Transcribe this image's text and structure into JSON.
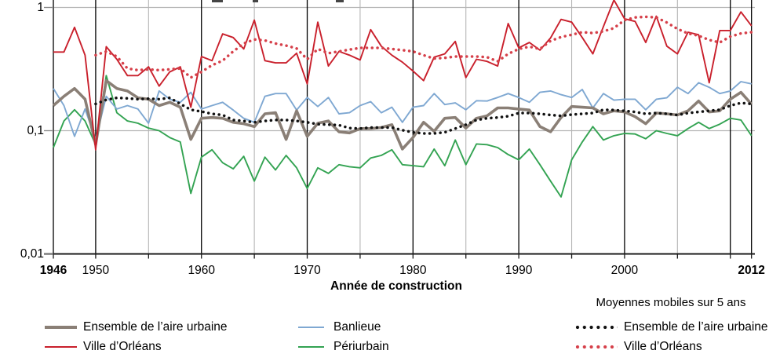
{
  "figure": {
    "clipped_title_visible": true
  },
  "legend": {
    "col1": [
      {
        "label": "Ensemble de l’aire urbaine",
        "series": 0
      },
      {
        "label": "Ville d’Orléans",
        "series": 1
      }
    ],
    "col2": [
      {
        "label": "Banlieue",
        "series": 2
      },
      {
        "label": "Périurbain",
        "series": 3
      }
    ],
    "col3_header": "Moyennes mobiles sur 5 ans",
    "col3": [
      {
        "label": "Ensemble de l’aire urbaine",
        "series": 4
      },
      {
        "label": "Ville d’Orléans",
        "series": 5
      }
    ]
  },
  "chart_data": {
    "type": "line",
    "xlabel": "Année de construction",
    "ylabel": "",
    "y_scale": "log",
    "ylim": [
      0.01,
      1.15
    ],
    "xlim": [
      1946,
      2012
    ],
    "x_start": 1946,
    "grid": true,
    "y_ticks": [
      {
        "value": 1,
        "label": "1"
      },
      {
        "value": 0.1,
        "label": "0,1"
      },
      {
        "value": 0.01,
        "label": "0,01"
      }
    ],
    "y_gridline_values": [
      1,
      0.1
    ],
    "x_tick_labels": [
      {
        "year": 1946,
        "label": "1946",
        "bold": true
      },
      {
        "year": 1950,
        "label": "1950",
        "bold": false
      },
      {
        "year": 1960,
        "label": "1960",
        "bold": false
      },
      {
        "year": 1970,
        "label": "1970",
        "bold": false
      },
      {
        "year": 1980,
        "label": "1980",
        "bold": false
      },
      {
        "year": 1990,
        "label": "1990",
        "bold": false
      },
      {
        "year": 2000,
        "label": "2000",
        "bold": false
      },
      {
        "year": 2012,
        "label": "2012",
        "bold": true
      }
    ],
    "grid_years_dark": [
      1946,
      1950,
      1960,
      1970,
      1980,
      1990,
      2000,
      2010,
      2012
    ],
    "grid_years_light": [
      1955,
      1965,
      1975,
      1985,
      1995,
      2005
    ],
    "axis_tick_years": [
      1946,
      1950,
      1955,
      1960,
      1965,
      1970,
      1975,
      1980,
      1985,
      1990,
      1995,
      2000,
      2005,
      2010,
      2012
    ],
    "colors": {
      "grid_dark": "#000000",
      "grid_light": "#b5b5b5",
      "axis": "#1a1a1a"
    },
    "series": [
      {
        "name": "Ensemble de l’aire urbaine",
        "style": "solid",
        "color": "#8a7f76",
        "width": 3.6,
        "start_year": 1946,
        "values": [
          0.16,
          0.19,
          0.22,
          0.18,
          0.077,
          0.255,
          0.22,
          0.21,
          0.185,
          0.18,
          0.16,
          0.17,
          0.155,
          0.085,
          0.126,
          0.128,
          0.126,
          0.117,
          0.114,
          0.108,
          0.137,
          0.14,
          0.085,
          0.145,
          0.09,
          0.115,
          0.12,
          0.098,
          0.096,
          0.104,
          0.104,
          0.106,
          0.112,
          0.071,
          0.088,
          0.117,
          0.099,
          0.126,
          0.128,
          0.105,
          0.126,
          0.132,
          0.153,
          0.153,
          0.15,
          0.147,
          0.108,
          0.098,
          0.128,
          0.157,
          0.155,
          0.153,
          0.137,
          0.145,
          0.142,
          0.13,
          0.114,
          0.139,
          0.137,
          0.134,
          0.145,
          0.174,
          0.142,
          0.145,
          0.18,
          0.205,
          0.164
        ]
      },
      {
        "name": "Ville d’Orléans",
        "style": "solid",
        "color": "#c9202c",
        "width": 1.9,
        "start_year": 1946,
        "values": [
          0.435,
          0.435,
          0.69,
          0.41,
          0.07,
          0.48,
          0.38,
          0.28,
          0.28,
          0.33,
          0.23,
          0.3,
          0.33,
          0.155,
          0.4,
          0.37,
          0.61,
          0.57,
          0.46,
          0.79,
          0.37,
          0.355,
          0.355,
          0.425,
          0.24,
          0.76,
          0.335,
          0.44,
          0.41,
          0.375,
          0.66,
          0.485,
          0.41,
          0.36,
          0.305,
          0.255,
          0.395,
          0.42,
          0.53,
          0.27,
          0.38,
          0.365,
          0.335,
          0.74,
          0.47,
          0.52,
          0.45,
          0.565,
          0.8,
          0.76,
          0.57,
          0.42,
          0.7,
          1.15,
          0.81,
          0.77,
          0.52,
          0.85,
          0.485,
          0.42,
          0.63,
          0.6,
          0.245,
          0.65,
          0.65,
          0.92,
          0.71
        ]
      },
      {
        "name": "Banlieue",
        "style": "solid",
        "color": "#7fa8d2",
        "width": 1.9,
        "start_year": 1946,
        "values": [
          0.22,
          0.16,
          0.09,
          0.15,
          0.085,
          0.19,
          0.15,
          0.16,
          0.15,
          0.115,
          0.21,
          0.18,
          0.17,
          0.205,
          0.15,
          0.16,
          0.17,
          0.147,
          0.126,
          0.117,
          0.19,
          0.2,
          0.2,
          0.147,
          0.186,
          0.157,
          0.186,
          0.137,
          0.14,
          0.16,
          0.172,
          0.14,
          0.155,
          0.117,
          0.155,
          0.16,
          0.2,
          0.163,
          0.168,
          0.148,
          0.175,
          0.174,
          0.186,
          0.2,
          0.186,
          0.17,
          0.205,
          0.21,
          0.196,
          0.186,
          0.216,
          0.153,
          0.2,
          0.177,
          0.18,
          0.18,
          0.148,
          0.18,
          0.185,
          0.225,
          0.2,
          0.245,
          0.225,
          0.2,
          0.21,
          0.25,
          0.24
        ]
      },
      {
        "name": "Périurbain",
        "style": "solid",
        "color": "#33a352",
        "width": 1.9,
        "start_year": 1946,
        "values": [
          0.073,
          0.12,
          0.148,
          0.12,
          0.077,
          0.28,
          0.14,
          0.12,
          0.115,
          0.105,
          0.1,
          0.088,
          0.081,
          0.031,
          0.061,
          0.07,
          0.055,
          0.049,
          0.062,
          0.039,
          0.061,
          0.048,
          0.063,
          0.05,
          0.034,
          0.05,
          0.045,
          0.053,
          0.051,
          0.05,
          0.06,
          0.063,
          0.07,
          0.053,
          0.052,
          0.051,
          0.071,
          0.052,
          0.084,
          0.053,
          0.078,
          0.077,
          0.073,
          0.064,
          0.058,
          0.071,
          0.053,
          0.039,
          0.029,
          0.058,
          0.081,
          0.108,
          0.084,
          0.091,
          0.095,
          0.094,
          0.086,
          0.1,
          0.095,
          0.091,
          0.104,
          0.117,
          0.104,
          0.113,
          0.126,
          0.122,
          0.091
        ]
      },
      {
        "name": "Ensemble de l’aire urbaine (moyenne mobile sur 5 ans)",
        "style": "dotted",
        "color": "#111111",
        "width": 3.5,
        "start_year": 1950,
        "values": [
          0.165,
          0.178,
          0.185,
          0.183,
          0.18,
          0.182,
          0.18,
          0.185,
          0.165,
          0.148,
          0.143,
          0.137,
          0.134,
          0.122,
          0.12,
          0.117,
          0.12,
          0.122,
          0.122,
          0.12,
          0.117,
          0.113,
          0.112,
          0.111,
          0.105,
          0.104,
          0.106,
          0.106,
          0.106,
          0.101,
          0.097,
          0.095,
          0.095,
          0.097,
          0.104,
          0.112,
          0.122,
          0.126,
          0.128,
          0.131,
          0.139,
          0.139,
          0.137,
          0.134,
          0.132,
          0.135,
          0.137,
          0.139,
          0.148,
          0.147,
          0.145,
          0.142,
          0.137,
          0.139,
          0.137,
          0.134,
          0.139,
          0.142,
          0.145,
          0.148,
          0.16,
          0.168,
          0.165
        ]
      },
      {
        "name": "Ville d’Orléans (moyenne mobile sur 5 ans)",
        "style": "dotted",
        "color": "#d6404a",
        "width": 3.5,
        "start_year": 1950,
        "values": [
          0.41,
          0.44,
          0.4,
          0.32,
          0.31,
          0.315,
          0.31,
          0.315,
          0.32,
          0.27,
          0.3,
          0.34,
          0.37,
          0.44,
          0.51,
          0.55,
          0.54,
          0.51,
          0.49,
          0.465,
          0.38,
          0.46,
          0.425,
          0.44,
          0.455,
          0.47,
          0.47,
          0.47,
          0.46,
          0.45,
          0.44,
          0.41,
          0.385,
          0.39,
          0.4,
          0.4,
          0.4,
          0.395,
          0.365,
          0.42,
          0.46,
          0.48,
          0.46,
          0.535,
          0.575,
          0.6,
          0.63,
          0.62,
          0.64,
          0.68,
          0.79,
          0.83,
          0.84,
          0.83,
          0.755,
          0.67,
          0.615,
          0.59,
          0.545,
          0.52,
          0.58,
          0.615,
          0.63
        ]
      }
    ]
  }
}
